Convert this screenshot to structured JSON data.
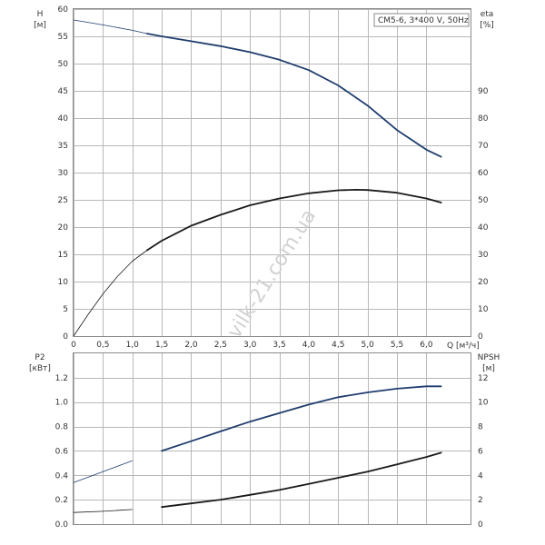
{
  "chart_data": [
    {
      "type": "line",
      "panel": "top",
      "model_label": "CM5-6, 3*400 V, 50Hz",
      "left_axis": {
        "label": "H",
        "unit": "[м]",
        "ylim": [
          0,
          60
        ],
        "ticks": [
          0,
          5,
          10,
          15,
          20,
          25,
          30,
          35,
          40,
          45,
          50,
          55,
          60
        ]
      },
      "right_axis": {
        "label": "eta",
        "unit": "[%]",
        "ylim": [
          0,
          120
        ],
        "ticks": [
          0,
          10,
          20,
          30,
          40,
          50,
          60,
          70,
          80,
          90
        ]
      },
      "x_axis": {
        "label": "Q [м³/ч]",
        "xlim": [
          0,
          6.75
        ],
        "ticks": [
          "0",
          "0,5",
          "1,0",
          "1,5",
          "2,0",
          "2,5",
          "3,0",
          "3,5",
          "4,0",
          "4,5",
          "5,0",
          "5,5",
          "6,0"
        ],
        "tick_values": [
          0,
          0.5,
          1.0,
          1.5,
          2.0,
          2.5,
          3.0,
          3.5,
          4.0,
          4.5,
          5.0,
          5.5,
          6.0
        ]
      },
      "grid": true,
      "series": [
        {
          "axis": "left",
          "color": "#1f3d6e",
          "x": [
            0,
            0.5,
            1.0,
            1.25,
            1.5,
            2.0,
            2.5,
            3.0,
            3.5,
            4.0,
            4.5,
            5.0,
            5.5,
            6.0,
            6.25
          ],
          "y": [
            58.0,
            57.1,
            56.1,
            55.5,
            55.0,
            54.1,
            53.2,
            52.1,
            50.7,
            48.8,
            46.0,
            42.3,
            37.8,
            34.2,
            32.9
          ],
          "thin_below_x": 1.25
        },
        {
          "axis": "right",
          "color": "#1a1a1a",
          "x": [
            0,
            0.25,
            0.5,
            0.75,
            1.0,
            1.25,
            1.5,
            2.0,
            2.5,
            3.0,
            3.5,
            4.0,
            4.5,
            4.8,
            5.0,
            5.5,
            6.0,
            6.25
          ],
          "y": [
            0,
            8,
            15.5,
            22,
            27.5,
            31.5,
            35,
            40.5,
            44.5,
            48,
            50.5,
            52.4,
            53.5,
            53.7,
            53.6,
            52.6,
            50.5,
            49
          ],
          "thin_below_x": 1.25
        }
      ]
    },
    {
      "type": "line",
      "panel": "bottom",
      "left_axis": {
        "label": "P2",
        "unit": "[кВт]",
        "ylim": [
          0,
          1.4
        ],
        "ticks": [
          "0.0",
          "0.2",
          "0.4",
          "0.6",
          "0.8",
          "1.0",
          "1.2"
        ],
        "tick_values": [
          0,
          0.2,
          0.4,
          0.6,
          0.8,
          1.0,
          1.2
        ]
      },
      "right_axis": {
        "label": "NPSH",
        "unit": "[м]",
        "ylim": [
          0,
          14
        ],
        "ticks": [
          0,
          2,
          4,
          6,
          8,
          10,
          12
        ]
      },
      "x_axis": {
        "xlim": [
          0,
          6.75
        ]
      },
      "grid": true,
      "series": [
        {
          "axis": "left",
          "color": "#1f3d6e",
          "x": [
            0,
            0.5,
            1.0,
            1.5,
            2.0,
            2.5,
            3.0,
            3.5,
            4.0,
            4.5,
            5.0,
            5.5,
            6.0,
            6.25
          ],
          "y": [
            0.34,
            0.43,
            0.52,
            0.6,
            0.68,
            0.76,
            0.84,
            0.91,
            0.98,
            1.04,
            1.08,
            1.11,
            1.13,
            1.13
          ],
          "thin_below_x": 1.25
        },
        {
          "axis": "right",
          "color": "#1a1a1a",
          "x": [
            0,
            0.5,
            1.0,
            1.5,
            2.0,
            2.5,
            3.0,
            3.5,
            4.0,
            4.5,
            5.0,
            5.5,
            6.0,
            6.25
          ],
          "y": [
            0.95,
            1.05,
            1.2,
            1.4,
            1.7,
            2.0,
            2.4,
            2.8,
            3.3,
            3.8,
            4.3,
            4.9,
            5.5,
            5.85
          ],
          "thin_below_x": 1.25
        }
      ]
    }
  ],
  "watermark": "vilk-21.com.ua"
}
